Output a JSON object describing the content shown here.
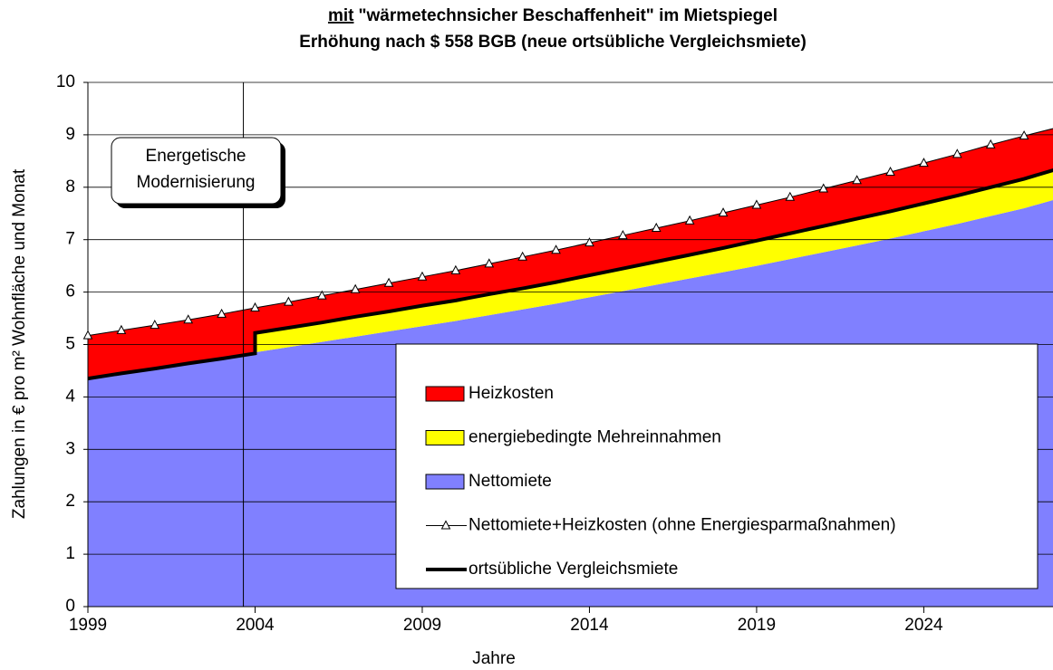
{
  "chart_data": {
    "type": "area",
    "title_underlined": "mit",
    "title": "\"wärmetechnsicher Beschaffenheit\" im Mietspiegel",
    "subtitle": "Erhöhung nach $ 558 BGB (neue ortsübliche Vergleichsmiete)",
    "xlabel": "Jahre",
    "ylabel": "Zahlungen in € pro m² Wohnfläche und Monat",
    "annotation": [
      "Energetische",
      "Modernisierung"
    ],
    "annotation_x": 2003.65,
    "xlim": [
      1999,
      2028
    ],
    "xticks": [
      1999,
      2004,
      2009,
      2014,
      2019,
      2024
    ],
    "ylim": [
      0,
      10
    ],
    "yticks": [
      0,
      1,
      2,
      3,
      4,
      5,
      6,
      7,
      8,
      9,
      10
    ],
    "grid": true,
    "x": [
      1999,
      2000,
      2001,
      2002,
      2003,
      2004,
      2004,
      2005,
      2006,
      2007,
      2008,
      2009,
      2010,
      2011,
      2012,
      2013,
      2014,
      2015,
      2016,
      2017,
      2018,
      2019,
      2020,
      2021,
      2022,
      2023,
      2024,
      2025,
      2026,
      2027,
      2028
    ],
    "series": [
      {
        "name": "Heizkosten",
        "kind": "area",
        "color": "#ff0000",
        "values": [
          0.82,
          0.82,
          0.83,
          0.83,
          0.85,
          0.87,
          0.48,
          0.49,
          0.51,
          0.52,
          0.54,
          0.55,
          0.57,
          0.58,
          0.6,
          0.61,
          0.62,
          0.63,
          0.64,
          0.65,
          0.67,
          0.68,
          0.69,
          0.71,
          0.73,
          0.75,
          0.77,
          0.79,
          0.81,
          0.82,
          0.79
        ]
      },
      {
        "name": "energiebedingte Mehreinnahmen",
        "kind": "area",
        "color": "#ffff00",
        "values": [
          0,
          0,
          0,
          0,
          0,
          0,
          0.37,
          0.37,
          0.37,
          0.38,
          0.38,
          0.39,
          0.39,
          0.4,
          0.4,
          0.41,
          0.42,
          0.43,
          0.44,
          0.45,
          0.46,
          0.48,
          0.49,
          0.5,
          0.51,
          0.52,
          0.53,
          0.54,
          0.55,
          0.56,
          0.57
        ]
      },
      {
        "name": "Nettomiete",
        "kind": "area",
        "color": "#8080ff",
        "values": [
          4.35,
          4.45,
          4.54,
          4.64,
          4.73,
          4.83,
          4.85,
          4.95,
          5.05,
          5.15,
          5.25,
          5.35,
          5.45,
          5.56,
          5.67,
          5.78,
          5.9,
          6.02,
          6.14,
          6.26,
          6.38,
          6.5,
          6.63,
          6.76,
          6.89,
          7.02,
          7.16,
          7.3,
          7.45,
          7.6,
          7.78
        ]
      },
      {
        "name": "Nettomiete+Heizkosten (ohne Energiesparmaßnahmen)",
        "kind": "line",
        "marker": "triangle",
        "color": "#000000",
        "width": 1,
        "x": [
          1999,
          2000,
          2001,
          2002,
          2003,
          2004,
          2005,
          2006,
          2007,
          2008,
          2009,
          2010,
          2011,
          2012,
          2013,
          2014,
          2015,
          2016,
          2017,
          2018,
          2019,
          2020,
          2021,
          2022,
          2023,
          2024,
          2025,
          2026,
          2027,
          2028
        ],
        "values": [
          5.17,
          5.27,
          5.37,
          5.47,
          5.58,
          5.7,
          5.81,
          5.93,
          6.05,
          6.17,
          6.29,
          6.41,
          6.54,
          6.67,
          6.8,
          6.94,
          7.08,
          7.22,
          7.36,
          7.51,
          7.66,
          7.81,
          7.97,
          8.13,
          8.29,
          8.46,
          8.63,
          8.81,
          8.98,
          9.14
        ]
      },
      {
        "name": "ortsübliche Vergleichsmiete",
        "kind": "line",
        "color": "#000000",
        "width": 4,
        "values": [
          4.35,
          4.45,
          4.54,
          4.64,
          4.73,
          4.83,
          5.22,
          5.32,
          5.42,
          5.53,
          5.63,
          5.74,
          5.84,
          5.96,
          6.07,
          6.19,
          6.32,
          6.45,
          6.58,
          6.71,
          6.84,
          6.98,
          7.12,
          7.26,
          7.4,
          7.54,
          7.69,
          7.84,
          8.0,
          8.16,
          8.35
        ]
      }
    ]
  }
}
